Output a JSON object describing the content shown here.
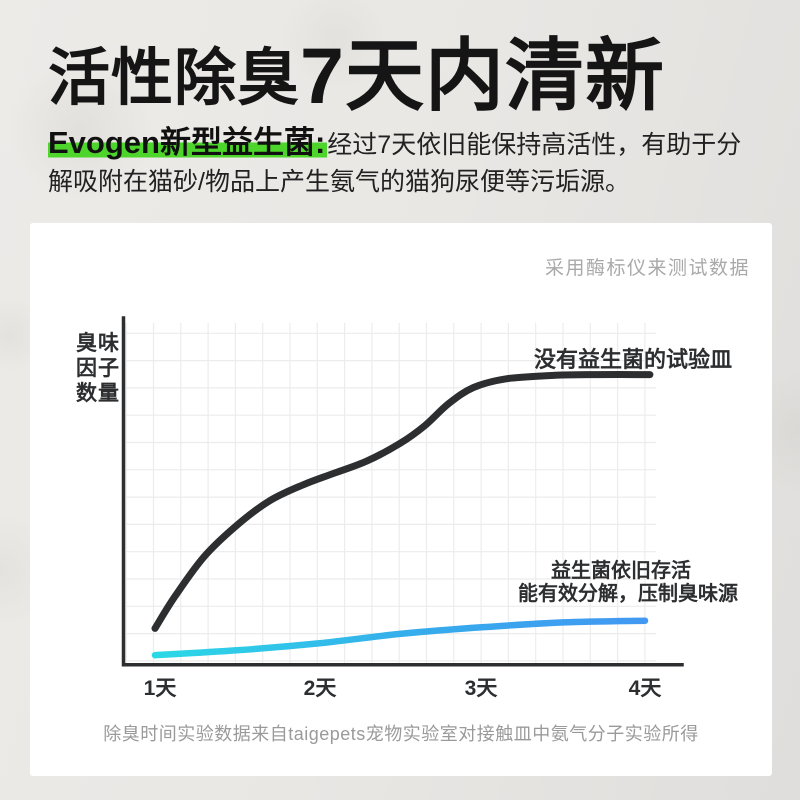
{
  "header": {
    "title_part1": "活性除臭",
    "title_part2": "7天内清新",
    "lead": "Evogen新型益生菌:",
    "description": "经过7天依旧能保持高活性，有助于分解吸附在猫砂/物品上产生氨气的猫狗尿便等污垢源。",
    "highlight_color": "#4ed52b"
  },
  "chart_note": "采用酶标仪来测试数据",
  "caption": "除臭时间实验数据来自taigepets宠物实验室对接触皿中氨气分子实验所得",
  "chart_data": {
    "type": "line",
    "title": "",
    "xlabel": "",
    "ylabel": "臭味因子数量",
    "ylabel_lines": [
      "臭味",
      "因子",
      "数量"
    ],
    "x_tick_labels": [
      "1天",
      "2天",
      "3天",
      "4天"
    ],
    "x_range_days": [
      1,
      4
    ],
    "ylim": [
      0,
      100
    ],
    "y_axis_numeric_labels": false,
    "grid": true,
    "legend_position": "inline-annotations",
    "series": [
      {
        "name": "没有益生菌的试验皿",
        "color": "#2c2e30",
        "points": [
          [
            1,
            10.5
          ],
          [
            1.12,
            19.5
          ],
          [
            1.3,
            31
          ],
          [
            1.5,
            40
          ],
          [
            1.7,
            47
          ],
          [
            1.9,
            51.5
          ],
          [
            2.1,
            55
          ],
          [
            2.3,
            58.5
          ],
          [
            2.5,
            63.5
          ],
          [
            2.65,
            68.5
          ],
          [
            2.8,
            75
          ],
          [
            2.95,
            79.5
          ],
          [
            3.15,
            82
          ],
          [
            3.45,
            83
          ],
          [
            3.7,
            83.2
          ],
          [
            4.03,
            83.2
          ]
        ]
      },
      {
        "name": "益生菌依旧存活 能有效分解，压制臭味源",
        "label_lines": [
          "益生菌依旧存活",
          "能有效分解，压制臭味源"
        ],
        "color_start": "#2bd9e6",
        "color_mid": "#36abec",
        "color_end": "#4298f2",
        "points": [
          [
            1,
            2.8
          ],
          [
            1.5,
            4.2
          ],
          [
            2,
            6.2
          ],
          [
            2.5,
            8.9
          ],
          [
            3,
            10.8
          ],
          [
            3.5,
            12.2
          ],
          [
            4,
            12.7
          ]
        ]
      }
    ]
  }
}
